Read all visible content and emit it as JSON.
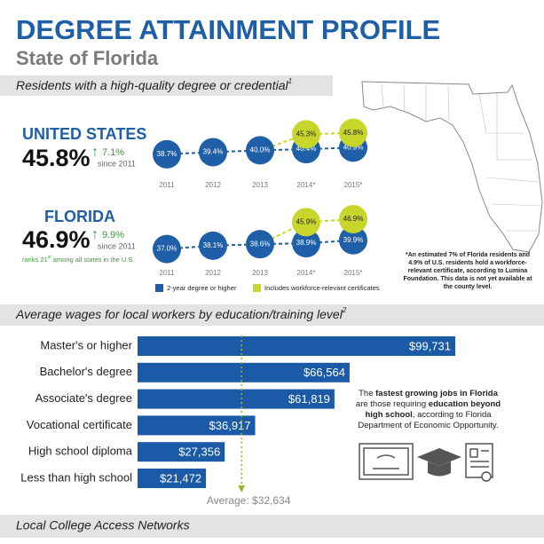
{
  "header": {
    "title": "DEGREE ATTAINMENT PROFILE",
    "subtitle": "State of Florida"
  },
  "sections": [
    {
      "title": "Residents with a high-quality degree or credential",
      "note": "1"
    },
    {
      "title": "Average wages for local workers by education/training level",
      "note": "2"
    },
    {
      "title": "Local College Access Networks"
    }
  ],
  "stats": [
    {
      "name": "UNITED STATES",
      "value": "45.8%",
      "change": "7.1%",
      "since": "since 2011"
    },
    {
      "name": "FLORIDA",
      "value": "46.9%",
      "change": "9.9%",
      "since": "since 2011",
      "rank": [
        "ranks 21",
        "st",
        " among all states in the U.S."
      ]
    }
  ],
  "chart_data": [
    {
      "type": "dot",
      "categories": [
        "2011",
        "2012",
        "2013",
        "2014*",
        "2015*"
      ],
      "series": [
        {
          "color": "#1f5fa8",
          "values": [
            38.7,
            39.4,
            40.0,
            40.4,
            40.9
          ],
          "value_labels": [
            "38.7%",
            "39.4%",
            "40.0%",
            "40.4%",
            "40.9%"
          ]
        },
        {
          "color": "#c8d62b",
          "values": [
            null,
            null,
            null,
            45.3,
            45.8
          ],
          "value_labels": [
            null,
            null,
            null,
            "45.3%",
            "45.8%"
          ]
        }
      ]
    },
    {
      "type": "dot",
      "categories": [
        "2011",
        "2012",
        "2013",
        "2014*",
        "2015*"
      ],
      "series": [
        {
          "name": "2-year degree or higher",
          "color": "#1f5fa8",
          "values": [
            37.0,
            38.1,
            38.6,
            38.9,
            39.9
          ],
          "value_labels": [
            "37.0%",
            "38.1%",
            "38.6%",
            "38.9%",
            "39.9%"
          ]
        },
        {
          "name": "Includes workforce-relevant certificates",
          "color": "#c8d62b",
          "values": [
            null,
            null,
            null,
            45.9,
            46.9
          ],
          "value_labels": [
            null,
            null,
            null,
            "45.9%",
            "46.9%"
          ]
        }
      ]
    },
    {
      "type": "hbar",
      "categories": [
        "Master's or higher",
        "Bachelor's degree",
        "Associate's degree",
        "Vocational certificate",
        "High school diploma",
        "Less than high school"
      ],
      "values": [
        99731,
        66564,
        61819,
        36917,
        27356,
        21472
      ],
      "value_labels": [
        "$99,731",
        "$66,564",
        "$61,819",
        "$36,917",
        "$27,356",
        "$21,472"
      ],
      "color": "#1a5aa6",
      "average": {
        "value": 32634,
        "label": "Average: $32,634",
        "color": "#9bb52a"
      }
    }
  ],
  "footnote": "*An estimated 7% of Florida residents and 4.9% of U.S. residents hold a workforce-relevant certificate, according to Lumina Foundation.  This data is not yet available at the county level.",
  "callout": [
    "The ",
    "fastest growing jobs in Florida",
    " are those requiring ",
    "education beyond high school",
    ", according to Florida Department of Economic Opportunity."
  ]
}
